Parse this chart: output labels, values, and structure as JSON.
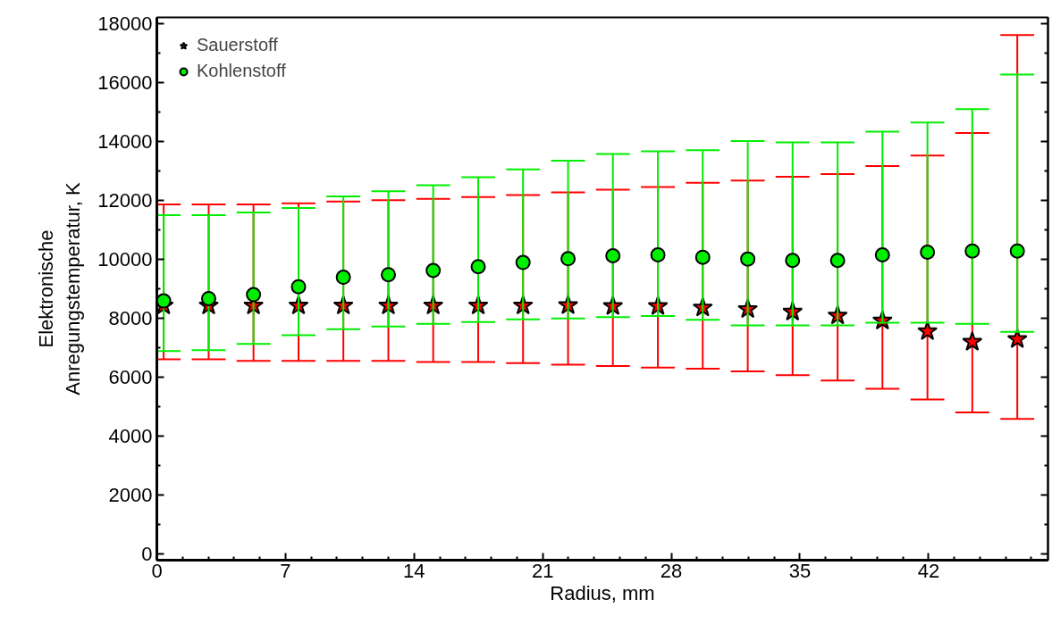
{
  "chart_data": {
    "type": "scatter",
    "xlabel": "Radius, mm",
    "ylabel": "Elektronische Anregungstemperatur, K",
    "x": [
      0.37,
      2.82,
      5.26,
      7.71,
      10.15,
      12.6,
      15.04,
      17.49,
      19.93,
      22.38,
      24.82,
      27.27,
      29.71,
      32.16,
      34.6,
      37.05,
      39.49,
      41.94,
      44.38,
      46.83
    ],
    "series": [
      {
        "name": "Sauerstoff",
        "color": "#ff0000",
        "marker": "star",
        "values": [
          8430,
          8430,
          8430,
          8430,
          8430,
          8430,
          8430,
          8430,
          8430,
          8440,
          8410,
          8410,
          8360,
          8310,
          8220,
          8090,
          7920,
          7560,
          7200,
          7290
        ],
        "errors": [
          [
            6610,
            11860
          ],
          [
            6610,
            11860
          ],
          [
            6560,
            11860
          ],
          [
            6560,
            11900
          ],
          [
            6560,
            11960
          ],
          [
            6560,
            12000
          ],
          [
            6520,
            12050
          ],
          [
            6520,
            12110
          ],
          [
            6480,
            12180
          ],
          [
            6430,
            12270
          ],
          [
            6380,
            12360
          ],
          [
            6330,
            12450
          ],
          [
            6290,
            12590
          ],
          [
            6200,
            12670
          ],
          [
            6070,
            12800
          ],
          [
            5890,
            12890
          ],
          [
            5610,
            13160
          ],
          [
            5250,
            13520
          ],
          [
            4810,
            14280
          ],
          [
            4590,
            17600
          ]
        ]
      },
      {
        "name": "Kohlenstoff",
        "color": "#00ee00",
        "marker": "circle",
        "values": [
          8590,
          8670,
          8800,
          9070,
          9390,
          9480,
          9620,
          9750,
          9890,
          10020,
          10120,
          10150,
          10070,
          10010,
          9960,
          9960,
          10150,
          10240,
          10280,
          10280
        ],
        "errors": [
          [
            6890,
            11500
          ],
          [
            6920,
            11500
          ],
          [
            7130,
            11590
          ],
          [
            7430,
            11740
          ],
          [
            7630,
            12130
          ],
          [
            7720,
            12310
          ],
          [
            7810,
            12510
          ],
          [
            7870,
            12780
          ],
          [
            7960,
            13050
          ],
          [
            7990,
            13340
          ],
          [
            8040,
            13570
          ],
          [
            8080,
            13660
          ],
          [
            7950,
            13700
          ],
          [
            7760,
            14010
          ],
          [
            7760,
            13960
          ],
          [
            7760,
            13960
          ],
          [
            7850,
            14330
          ],
          [
            7850,
            14640
          ],
          [
            7810,
            15090
          ],
          [
            7540,
            16260
          ]
        ]
      }
    ],
    "xlim": [
      0,
      48.5
    ],
    "ylim": [
      -200,
      18200
    ],
    "xticks": [
      0,
      7,
      14,
      21,
      28,
      35,
      42
    ],
    "yticks": [
      0,
      2000,
      4000,
      6000,
      8000,
      10000,
      12000,
      14000,
      16000,
      18000
    ],
    "grid": false,
    "legend": "top left"
  }
}
